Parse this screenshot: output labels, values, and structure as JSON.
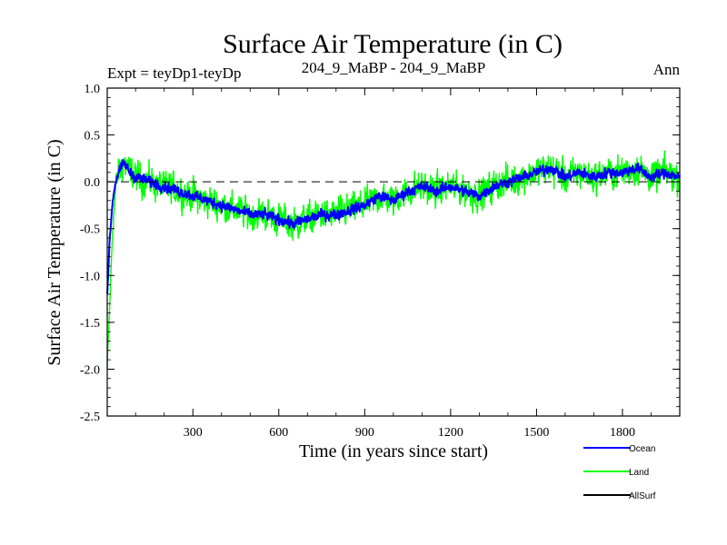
{
  "chart_data": {
    "type": "line",
    "title": "Surface Air Temperature (in C)",
    "subtitle_left": "Expt = teyDp1-teyDp",
    "subtitle_center": "204_9_MaBP - 204_9_MaBP",
    "subtitle_right": "Ann",
    "xlabel": "Time (in years since start)",
    "ylabel": "Surface Air Temperature (in C)",
    "xlim": [
      1,
      2000
    ],
    "ylim": [
      -2.5,
      1.0
    ],
    "xticks": [
      300,
      600,
      900,
      1200,
      1500,
      1800
    ],
    "yticks": [
      1.0,
      0.5,
      0.0,
      -0.5,
      -1.0,
      -1.5,
      -2.0,
      -2.5
    ],
    "ytick_labels": [
      "1.0",
      "0.5",
      "0.0",
      "-0.5",
      "-1.0",
      "-1.5",
      "-2.0",
      "-2.5"
    ],
    "reference_line": 0.0,
    "series": [
      {
        "name": "Land",
        "color": "#00ff00",
        "x": [
          1,
          10,
          20,
          30,
          40,
          50,
          60,
          80,
          100,
          150,
          200,
          250,
          300,
          350,
          400,
          450,
          500,
          550,
          600,
          650,
          700,
          750,
          800,
          850,
          900,
          950,
          1000,
          1050,
          1100,
          1150,
          1200,
          1250,
          1300,
          1350,
          1400,
          1450,
          1500,
          1550,
          1600,
          1650,
          1700,
          1750,
          1800,
          1850,
          1900,
          1950,
          2000
        ],
        "values": [
          -2.0,
          -1.3,
          -0.5,
          -0.1,
          0.1,
          0.15,
          0.2,
          0.1,
          0.05,
          0.0,
          -0.05,
          -0.1,
          -0.15,
          -0.2,
          -0.25,
          -0.3,
          -0.35,
          -0.35,
          -0.4,
          -0.45,
          -0.4,
          -0.35,
          -0.35,
          -0.3,
          -0.25,
          -0.15,
          -0.2,
          -0.1,
          -0.05,
          -0.1,
          -0.05,
          -0.1,
          -0.15,
          -0.05,
          0.0,
          0.05,
          0.1,
          0.15,
          0.05,
          0.1,
          0.05,
          0.1,
          0.1,
          0.15,
          0.05,
          0.1,
          0.05
        ]
      },
      {
        "name": "Ocean",
        "color": "#0000ff",
        "x": [
          1,
          10,
          20,
          30,
          40,
          50,
          60,
          80,
          100,
          150,
          200,
          250,
          300,
          350,
          400,
          450,
          500,
          550,
          600,
          650,
          700,
          750,
          800,
          850,
          900,
          950,
          1000,
          1050,
          1100,
          1150,
          1200,
          1250,
          1300,
          1350,
          1400,
          1450,
          1500,
          1550,
          1600,
          1650,
          1700,
          1750,
          1800,
          1850,
          1900,
          1950,
          2000
        ],
        "values": [
          -1.2,
          -0.6,
          -0.2,
          0.0,
          0.1,
          0.15,
          0.2,
          0.1,
          0.05,
          0.0,
          -0.05,
          -0.1,
          -0.15,
          -0.2,
          -0.25,
          -0.3,
          -0.35,
          -0.35,
          -0.4,
          -0.45,
          -0.4,
          -0.35,
          -0.35,
          -0.3,
          -0.25,
          -0.15,
          -0.2,
          -0.1,
          -0.05,
          -0.1,
          -0.05,
          -0.1,
          -0.15,
          -0.05,
          0.0,
          0.05,
          0.1,
          0.15,
          0.05,
          0.1,
          0.05,
          0.1,
          0.1,
          0.15,
          0.05,
          0.1,
          0.05
        ]
      },
      {
        "name": "AllSurf",
        "color": "#000000",
        "x": [],
        "values": []
      }
    ],
    "legend": [
      {
        "label": "Ocean",
        "color": "#0000ff"
      },
      {
        "label": "Land",
        "color": "#00ff00"
      },
      {
        "label": "AllSurf",
        "color": "#000000"
      }
    ],
    "noise": {
      "Land": 0.22,
      "Ocean": 0.07
    }
  }
}
